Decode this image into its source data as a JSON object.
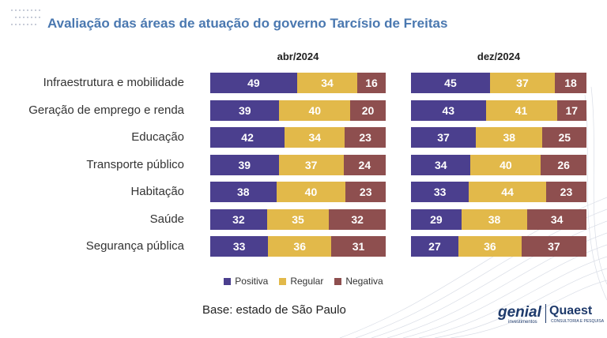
{
  "title": "Avaliação das áreas de atuação do governo Tarcísio de Freitas",
  "base_note": "Base: estado de São Paulo",
  "logos": {
    "genial": "genial",
    "genial_sub": "investimentos",
    "quaest": "Quaest",
    "quaest_sub": "CONSULTORIA E PESQUISA"
  },
  "colors": {
    "positiva": "#4b3f8e",
    "regular": "#e2b94a",
    "negativa": "#8e4f4f"
  },
  "chart_data": [
    {
      "type": "bar",
      "stacked": true,
      "orientation": "horizontal",
      "title": "abr/2024",
      "categories": [
        "Infraestrutura e mobilidade",
        "Geração de emprego e renda",
        "Educação",
        "Transporte público",
        "Habitação",
        "Saúde",
        "Segurança pública"
      ],
      "series": [
        {
          "name": "Positiva",
          "values": [
            49,
            39,
            42,
            39,
            38,
            32,
            33
          ]
        },
        {
          "name": "Regular",
          "values": [
            34,
            40,
            34,
            37,
            40,
            35,
            36
          ]
        },
        {
          "name": "Negativa",
          "values": [
            16,
            20,
            23,
            24,
            23,
            32,
            31
          ]
        }
      ],
      "legend": "bottom"
    },
    {
      "type": "bar",
      "stacked": true,
      "orientation": "horizontal",
      "title": "dez/2024",
      "categories": [
        "Infraestrutura e mobilidade",
        "Geração de emprego e renda",
        "Educação",
        "Transporte público",
        "Habitação",
        "Saúde",
        "Segurança pública"
      ],
      "series": [
        {
          "name": "Positiva",
          "values": [
            45,
            43,
            37,
            34,
            33,
            29,
            27
          ]
        },
        {
          "name": "Regular",
          "values": [
            37,
            41,
            38,
            40,
            44,
            38,
            36
          ]
        },
        {
          "name": "Negativa",
          "values": [
            18,
            17,
            25,
            26,
            23,
            34,
            37
          ]
        }
      ],
      "legend": "bottom"
    }
  ]
}
